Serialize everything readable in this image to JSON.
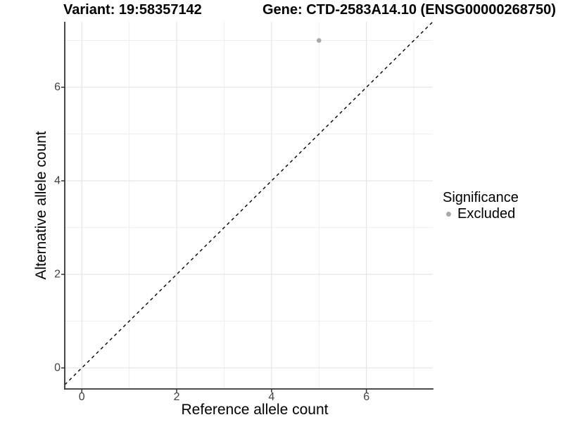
{
  "header": {
    "left_title": "Variant: 19:58357142",
    "right_title": "Gene: CTD-2583A14.10 (ENSG00000268750)"
  },
  "chart_data": {
    "type": "scatter",
    "xlabel": "Reference allele count",
    "ylabel": "Alternative allele count",
    "xlim": [
      -0.36,
      7.4
    ],
    "ylim": [
      -0.45,
      7.4
    ],
    "xticks": [
      0,
      2,
      4,
      6
    ],
    "yticks": [
      0,
      2,
      4,
      6
    ],
    "minor_xticks": [
      1,
      3,
      5,
      7
    ],
    "minor_yticks": [
      1,
      3,
      5,
      7
    ],
    "grid": "major+minor",
    "points": [
      {
        "x": 5,
        "y": 7,
        "series": "Excluded"
      }
    ],
    "identity_line": {
      "slope": 1,
      "intercept": 0,
      "style": "dashed",
      "color": "#000000"
    },
    "colors": {
      "point": "#a9a9a9",
      "grid_major": "#e3e3e3",
      "grid_minor": "#ededed",
      "axis": "#333333",
      "tick_label": "#404040"
    }
  },
  "legend": {
    "title": "Significance",
    "items": [
      {
        "label": "Excluded",
        "color": "#a9a9a9",
        "marker": "circle"
      }
    ]
  }
}
